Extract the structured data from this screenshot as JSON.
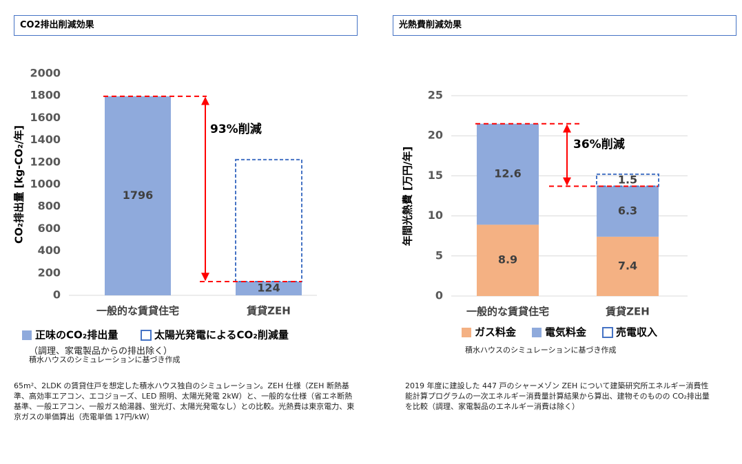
{
  "chart_data": [
    {
      "type": "bar",
      "stacked": true,
      "title": "CO2排出削減効果",
      "y_label": "CO₂排出量 [kg-CO₂/年]",
      "categories": [
        "一般的な賃貸住宅",
        "賃貸ZEH"
      ],
      "series": [
        {
          "name": "正味のCO₂排出量",
          "color": "#8faadc",
          "dashed": false,
          "data_labels": true,
          "values": [
            1796,
            124
          ]
        },
        {
          "name": "太陽光発電によるCO₂削減量",
          "color": "#4472c4",
          "dashed": true,
          "data_labels": false,
          "values": [
            null,
            1100
          ]
        }
      ],
      "legend_note": "（調理、家電製品からの排出除く）",
      "annotation": "93%削減",
      "ylim": [
        0,
        2000
      ],
      "yticks": [
        0,
        200,
        400,
        600,
        800,
        1000,
        1200,
        1400,
        1600,
        1800,
        2000
      ],
      "grid": false,
      "source": "積水ハウスのシミュレーションに基づき作成",
      "caption": "65m²、2LDK の賃貸住戸を想定した積水ハウス独自のシミュレーション。ZEH 仕様（ZEH 断熱基準、高効率エアコン、エコジョーズ、LED 照明、太陽光発電 2kW）と、一般的な仕様（省エネ断熱基準、一般エアコン、一般ガス給湯器、蛍光灯、太陽光発電なし）との比較。光熱費は東京電力、東京ガスの単価算出（売電単価 17円/kW）"
    },
    {
      "type": "bar",
      "stacked": true,
      "title": "光熱費削減効果",
      "y_label": "年間光熱費 [万円/年]",
      "categories": [
        "一般的な賃貸住宅",
        "賃貸ZEH"
      ],
      "series": [
        {
          "name": "ガス料金",
          "color": "#f4b183",
          "dashed": false,
          "data_labels": true,
          "values": [
            8.9,
            7.4
          ]
        },
        {
          "name": "電気料金",
          "color": "#8faadc",
          "dashed": false,
          "data_labels": true,
          "values": [
            12.6,
            6.3
          ]
        },
        {
          "name": "売電収入",
          "color": "#4472c4",
          "dashed": true,
          "data_labels": true,
          "values": [
            null,
            1.5
          ]
        }
      ],
      "annotation": "36%削減",
      "ylim": [
        0,
        25
      ],
      "yticks": [
        0,
        5,
        10,
        15,
        20,
        25
      ],
      "grid": true,
      "source": "積水ハウスのシミュレーションに基づき作成",
      "caption": "2019 年度に建設した 447 戸のシャーメゾン ZEH について建築研究所エネルギー消費性能計算プログラムの一次エネルギー消費量計算結果から算出、建物そのものの CO₂排出量を比較（調理、家電製品のエネルギー消費は除く）"
    }
  ]
}
